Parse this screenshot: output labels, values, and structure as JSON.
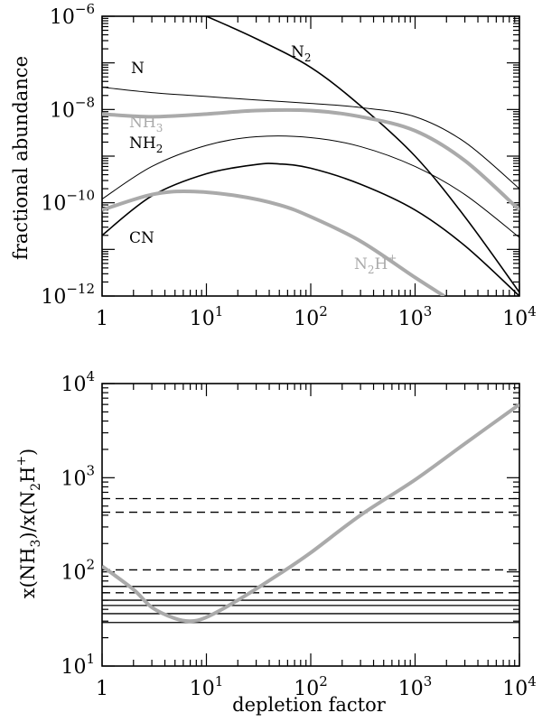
{
  "chart_data": [
    {
      "type": "line",
      "xscale": "log",
      "yscale": "log",
      "xlim": [
        1,
        10000
      ],
      "ylim": [
        1e-12,
        1e-06
      ],
      "xlabel": "",
      "ylabel": "fractional abundance",
      "x_tick_labels": [
        "1",
        "10",
        "10",
        "10",
        "10"
      ],
      "x_tick_exps": [
        "",
        "1",
        "2",
        "3",
        "4"
      ],
      "y_tick_labels": [
        "10",
        "10",
        "10",
        "10"
      ],
      "y_tick_exps": [
        "−12",
        "−10",
        "−8",
        "−6"
      ],
      "series": [
        {
          "name": "N",
          "label_main": "N",
          "label_sub": "",
          "label_sup": "",
          "color": "#000000",
          "width": 1,
          "x": [
            1,
            3,
            10,
            30,
            100,
            300,
            1000,
            3000,
            10000
          ],
          "y": [
            3e-08,
            2.3e-08,
            1.9e-08,
            1.6e-08,
            1.35e-08,
            1.1e-08,
            7e-09,
            2e-09,
            2e-10
          ]
        },
        {
          "name": "N2",
          "label_main": "N",
          "label_sub": "2",
          "label_sup": "",
          "color": "#000000",
          "width": 1.6,
          "x": [
            10,
            30,
            100,
            300,
            1000,
            3000,
            10000
          ],
          "y": [
            1e-06,
            3.3e-07,
            8e-08,
            1.2e-08,
            1e-09,
            5e-11,
            1.2e-12
          ]
        },
        {
          "name": "NH3",
          "label_main": "NH",
          "label_sub": "3",
          "label_sup": "",
          "color": "#aaaaaa",
          "width": 4,
          "x": [
            1,
            3,
            10,
            30,
            100,
            300,
            1000,
            3000,
            10000
          ],
          "y": [
            8e-09,
            7e-09,
            8e-09,
            9.5e-09,
            9.5e-09,
            7e-09,
            3.5e-09,
            8e-10,
            7e-11
          ]
        },
        {
          "name": "NH2",
          "label_main": "NH",
          "label_sub": "2",
          "label_sup": "",
          "color": "#000000",
          "width": 1,
          "x": [
            1,
            3,
            10,
            30,
            100,
            300,
            1000,
            3000,
            10000
          ],
          "y": [
            1.2e-10,
            6e-10,
            1.7e-09,
            2.6e-09,
            2.5e-09,
            1.6e-09,
            6e-10,
            1.5e-10,
            1.8e-11
          ]
        },
        {
          "name": "CN",
          "label_main": "CN",
          "label_sub": "",
          "label_sup": "",
          "color": "#000000",
          "width": 1.6,
          "x": [
            1,
            3,
            10,
            30,
            50,
            100,
            300,
            1000,
            3000,
            10000
          ],
          "y": [
            2e-11,
            1.4e-10,
            4.2e-10,
            6.6e-10,
            6.8e-10,
            5.5e-10,
            2.5e-10,
            7e-11,
            1.2e-11,
            1e-12
          ]
        },
        {
          "name": "N2H+",
          "label_main": "N",
          "label_sub": "2",
          "label_sup": "H+",
          "color": "#aaaaaa",
          "width": 4,
          "x": [
            1,
            3,
            7,
            20,
            50,
            100,
            300,
            1000,
            1900
          ],
          "y": [
            7e-11,
            1.5e-10,
            1.75e-10,
            1.4e-10,
            9e-11,
            5e-11,
            1.5e-11,
            2.5e-12,
            1e-12
          ]
        }
      ]
    },
    {
      "type": "line",
      "xscale": "log",
      "yscale": "log",
      "xlim": [
        1,
        10000
      ],
      "ylim": [
        10,
        10000
      ],
      "xlabel": "depletion factor",
      "ylabel": "x(NH3)/x(N2H+)",
      "ylabel_parts": [
        "x(NH",
        "3",
        ")/x(N",
        "2",
        "H",
        "+",
        ")"
      ],
      "x_tick_labels": [
        "1",
        "10",
        "10",
        "10",
        "10"
      ],
      "x_tick_exps": [
        "",
        "1",
        "2",
        "3",
        "4"
      ],
      "y_tick_labels": [
        "10",
        "10",
        "10",
        "10"
      ],
      "y_tick_exps": [
        "1",
        "2",
        "3",
        "4"
      ],
      "series": [
        {
          "color": "#aaaaaa",
          "width": 4,
          "x": [
            1,
            2,
            3,
            5,
            7,
            10,
            20,
            50,
            100,
            300,
            1000,
            3000,
            10000
          ],
          "y": [
            115,
            65,
            42,
            32,
            30,
            33,
            50,
            95,
            160,
            400,
            950,
            2300,
            6000
          ]
        }
      ],
      "dashed_levels": [
        600,
        430,
        105,
        60
      ],
      "solid_levels": [
        70,
        50,
        44,
        36,
        29
      ]
    }
  ]
}
